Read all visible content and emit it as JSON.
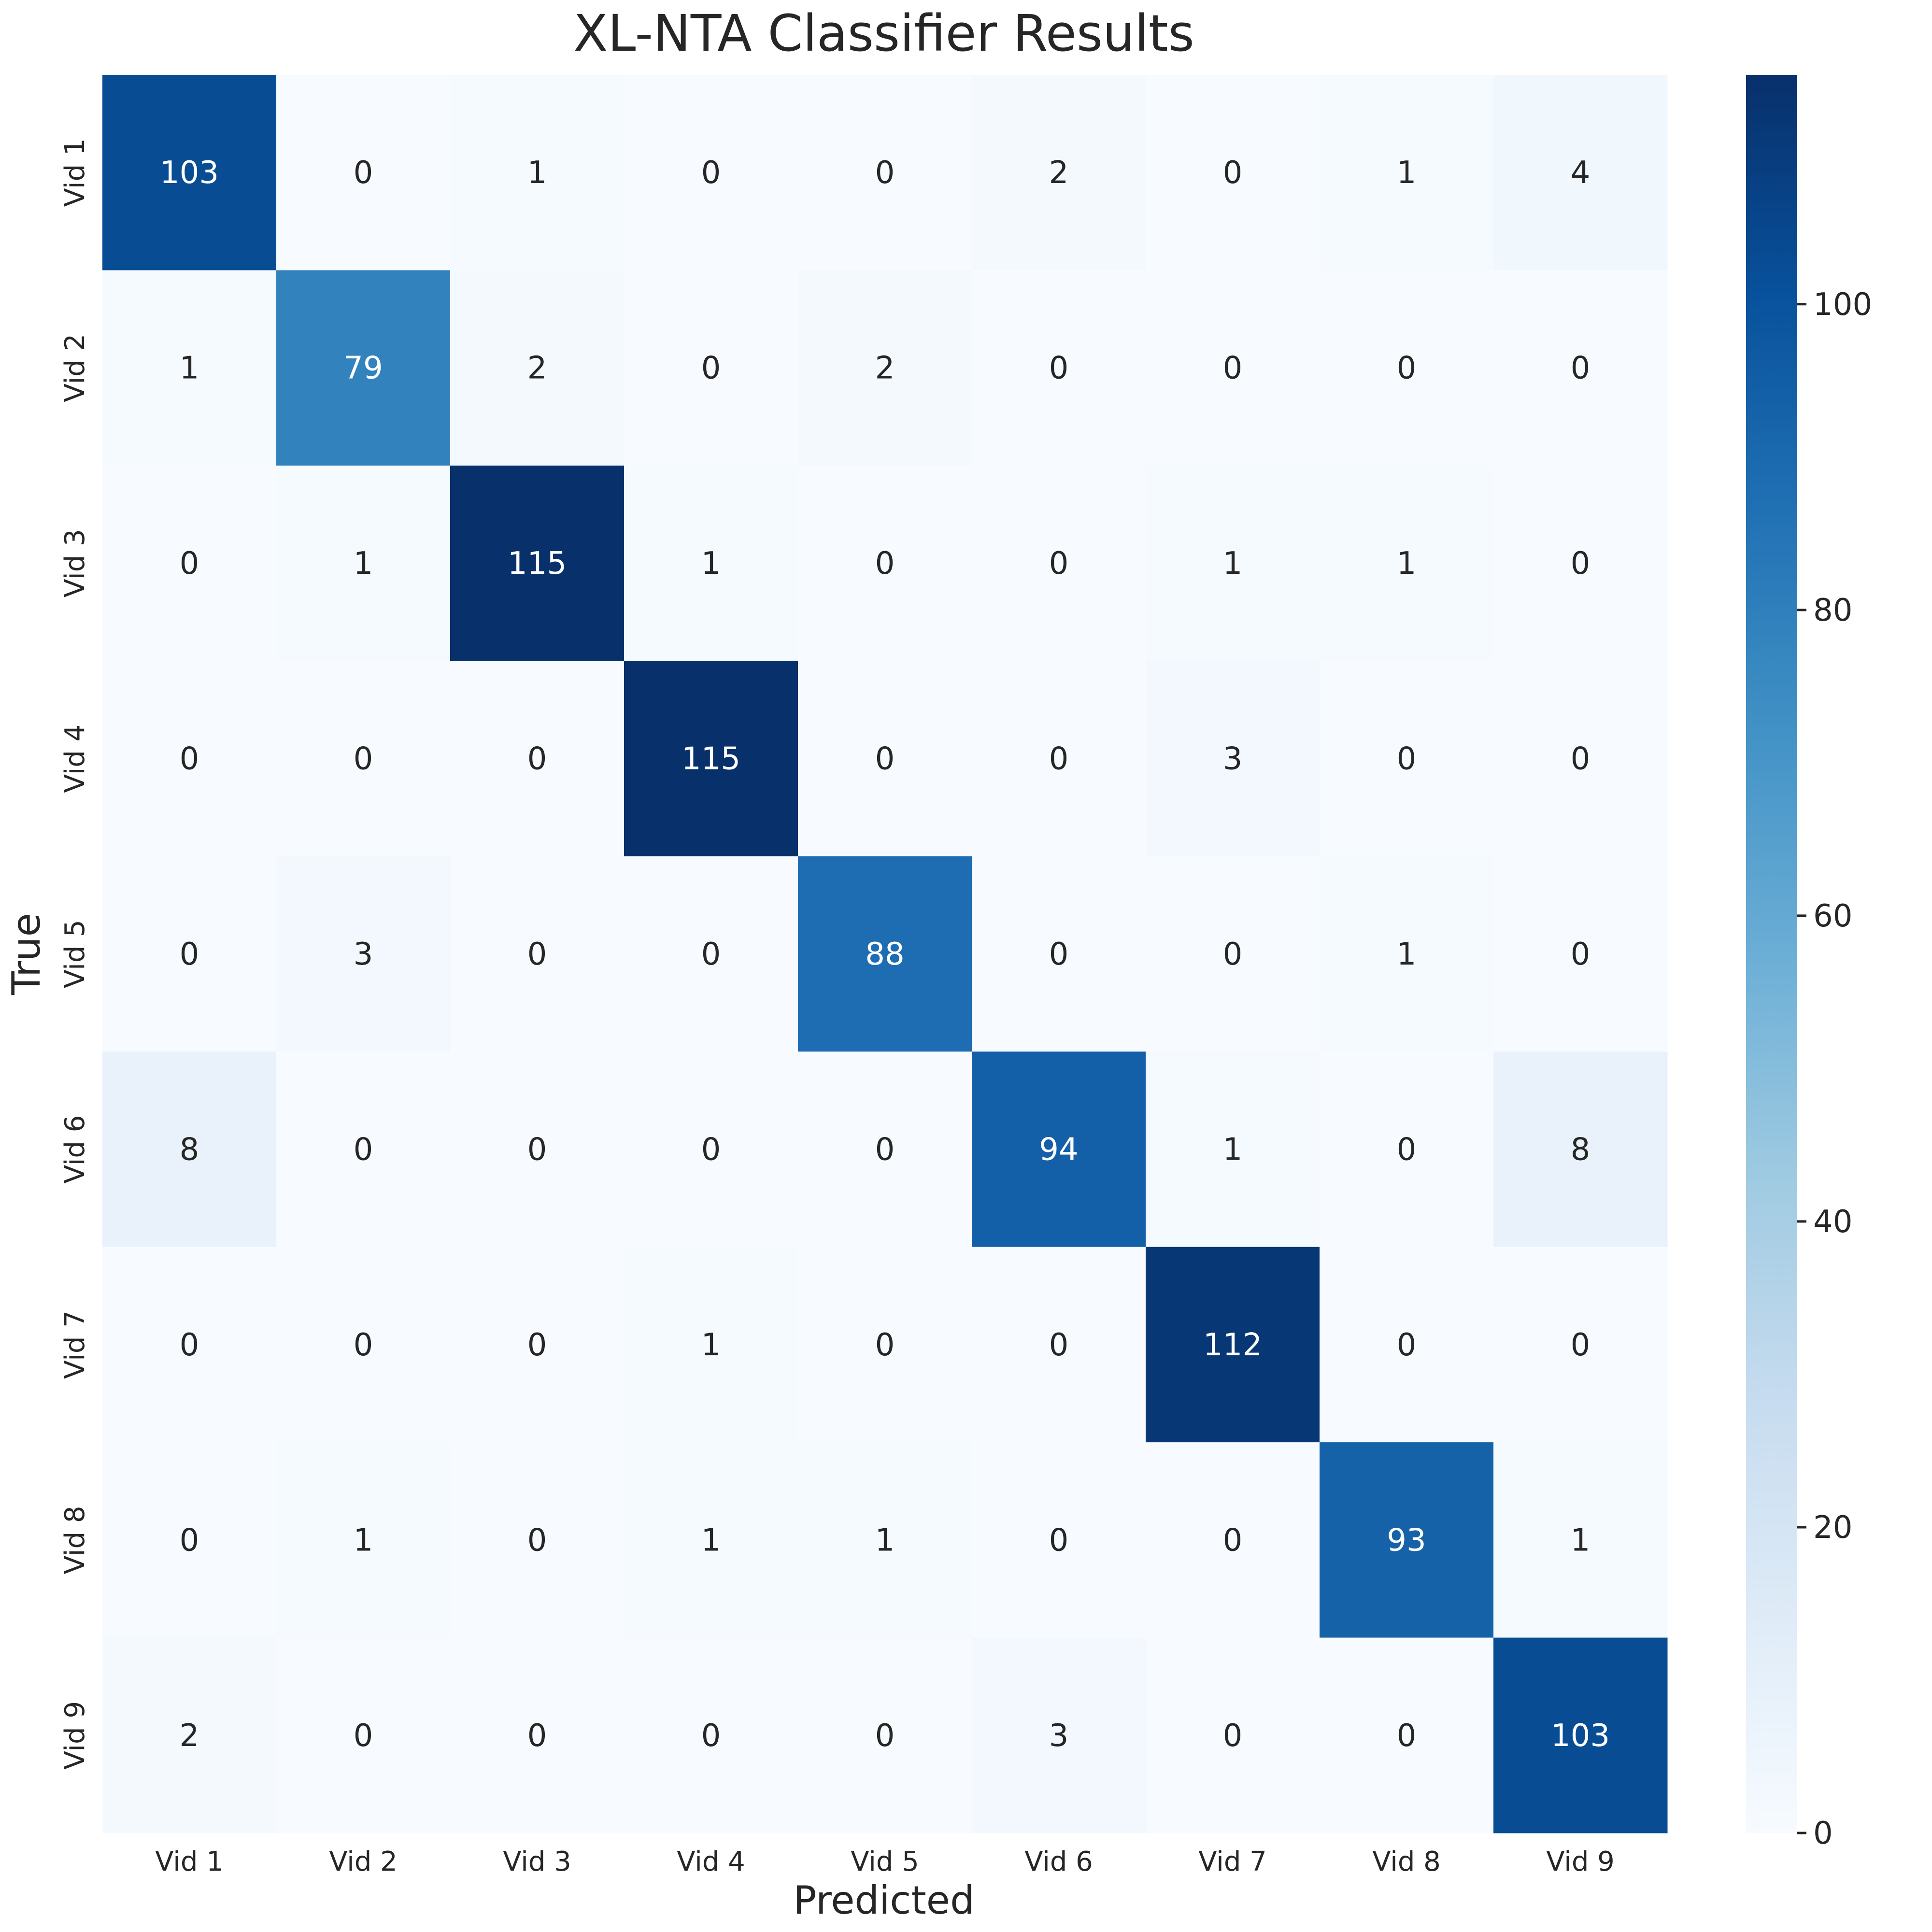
{
  "chart_data": {
    "type": "heatmap",
    "title": "XL-NTA Classifier Results",
    "xlabel": "Predicted",
    "ylabel": "True",
    "x_categories": [
      "Vid 1",
      "Vid 2",
      "Vid 3",
      "Vid 4",
      "Vid 5",
      "Vid 6",
      "Vid 7",
      "Vid 8",
      "Vid 9"
    ],
    "y_categories": [
      "Vid 1",
      "Vid 2",
      "Vid 3",
      "Vid 4",
      "Vid 5",
      "Vid 6",
      "Vid 7",
      "Vid 8",
      "Vid 9"
    ],
    "values": [
      [
        103,
        0,
        1,
        0,
        0,
        2,
        0,
        1,
        4
      ],
      [
        1,
        79,
        2,
        0,
        2,
        0,
        0,
        0,
        0
      ],
      [
        0,
        1,
        115,
        1,
        0,
        0,
        1,
        1,
        0
      ],
      [
        0,
        0,
        0,
        115,
        0,
        0,
        3,
        0,
        0
      ],
      [
        0,
        3,
        0,
        0,
        88,
        0,
        0,
        1,
        0
      ],
      [
        8,
        0,
        0,
        0,
        0,
        94,
        1,
        0,
        8
      ],
      [
        0,
        0,
        0,
        1,
        0,
        0,
        112,
        0,
        0
      ],
      [
        0,
        1,
        0,
        1,
        1,
        0,
        0,
        93,
        1
      ],
      [
        2,
        0,
        0,
        0,
        0,
        3,
        0,
        0,
        103
      ]
    ],
    "colorbar": {
      "range": [
        0,
        115
      ],
      "ticks": [
        "0",
        "20",
        "40",
        "60",
        "80",
        "100"
      ],
      "colormap": "Blues"
    },
    "grid": false
  }
}
